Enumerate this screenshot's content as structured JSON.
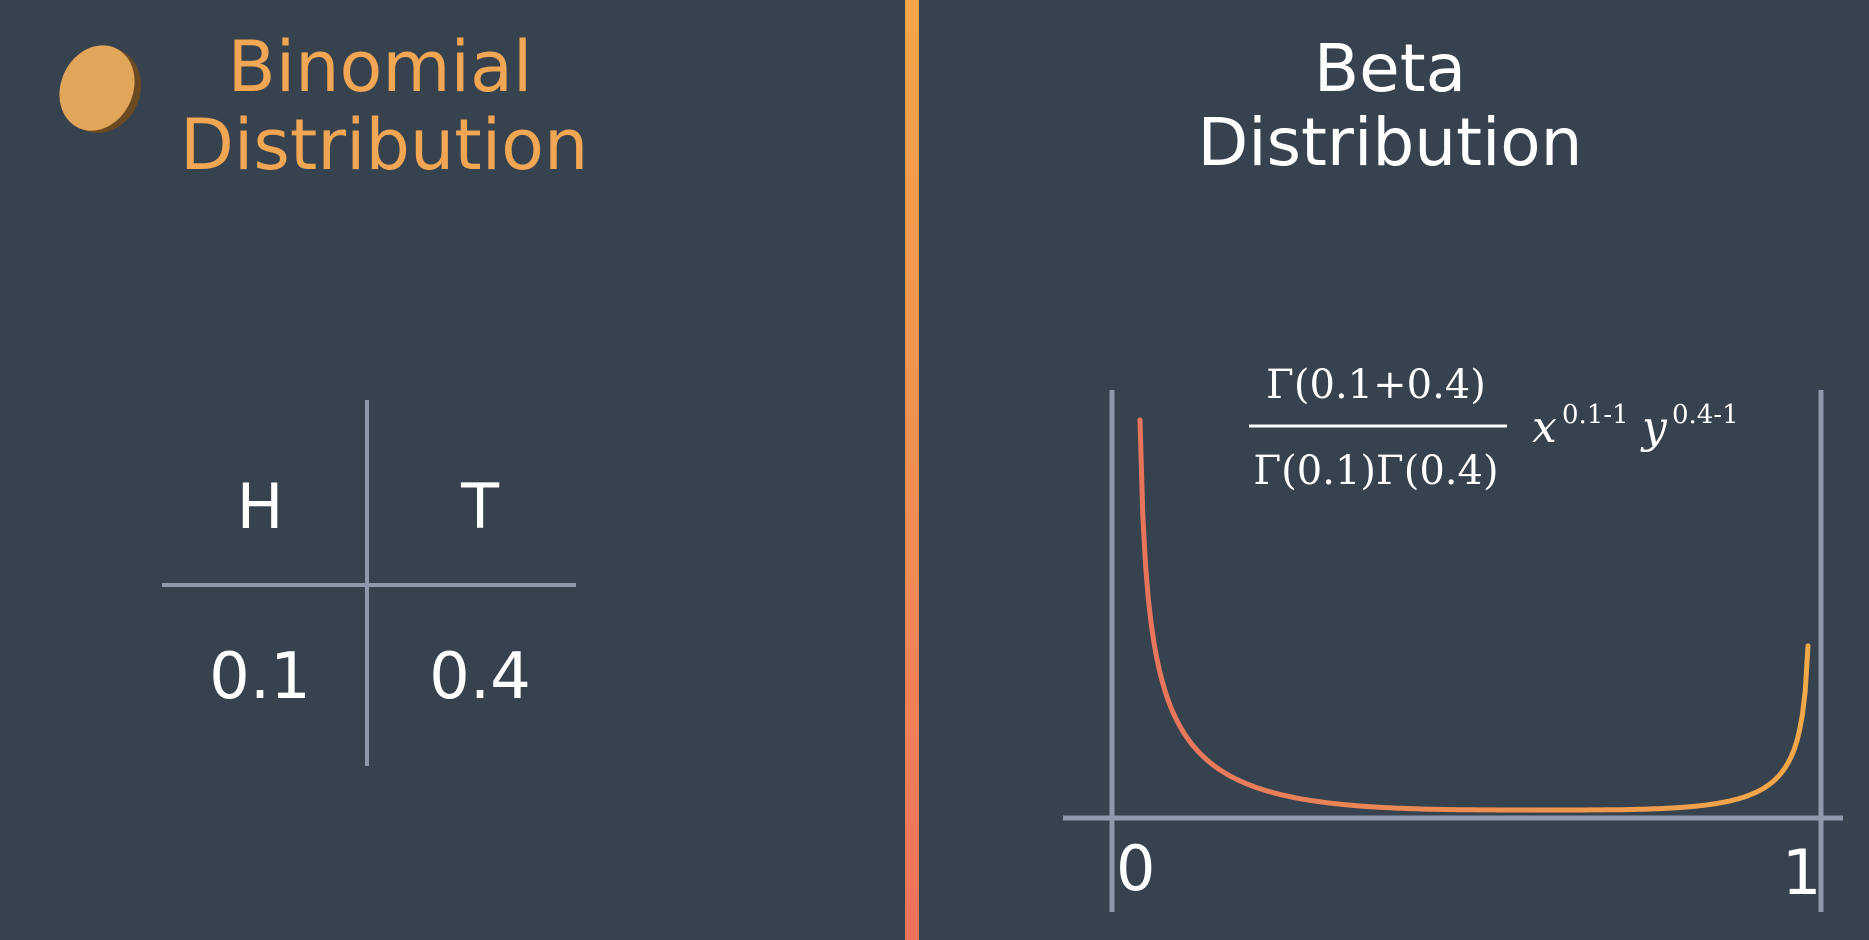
{
  "left": {
    "title_line1": "Binomial",
    "title_line2": "Distribution",
    "table": {
      "headers": [
        "H",
        "T"
      ],
      "values": [
        "0.1",
        "0.4"
      ]
    }
  },
  "right": {
    "title": "Beta Distribution",
    "formula": {
      "numerator": "Γ(0.1+0.4)",
      "denominator": "Γ(0.1)Γ(0.4)",
      "var_x": "x",
      "exp_x": "0.1-1",
      "var_y": "y",
      "exp_y": "0.4-1"
    }
  },
  "chart_data": {
    "type": "line",
    "title": "",
    "xlabel": "",
    "ylabel": "",
    "x_tick_labels": [
      "0",
      "1"
    ],
    "xlim": [
      0,
      1
    ],
    "parameters": {
      "alpha": 0.1,
      "beta": 0.4
    },
    "curve": "Beta(0.1, 0.4) density, U-shaped, rising toward both ends",
    "colors": {
      "start": "#e8745c",
      "end": "#f2a948"
    }
  },
  "colors": {
    "background": "#37424f",
    "accent_orange": "#f0a652",
    "axis": "#8c9aab",
    "coin": "#e2a65a"
  },
  "icons": {
    "coin": "coin-icon"
  }
}
